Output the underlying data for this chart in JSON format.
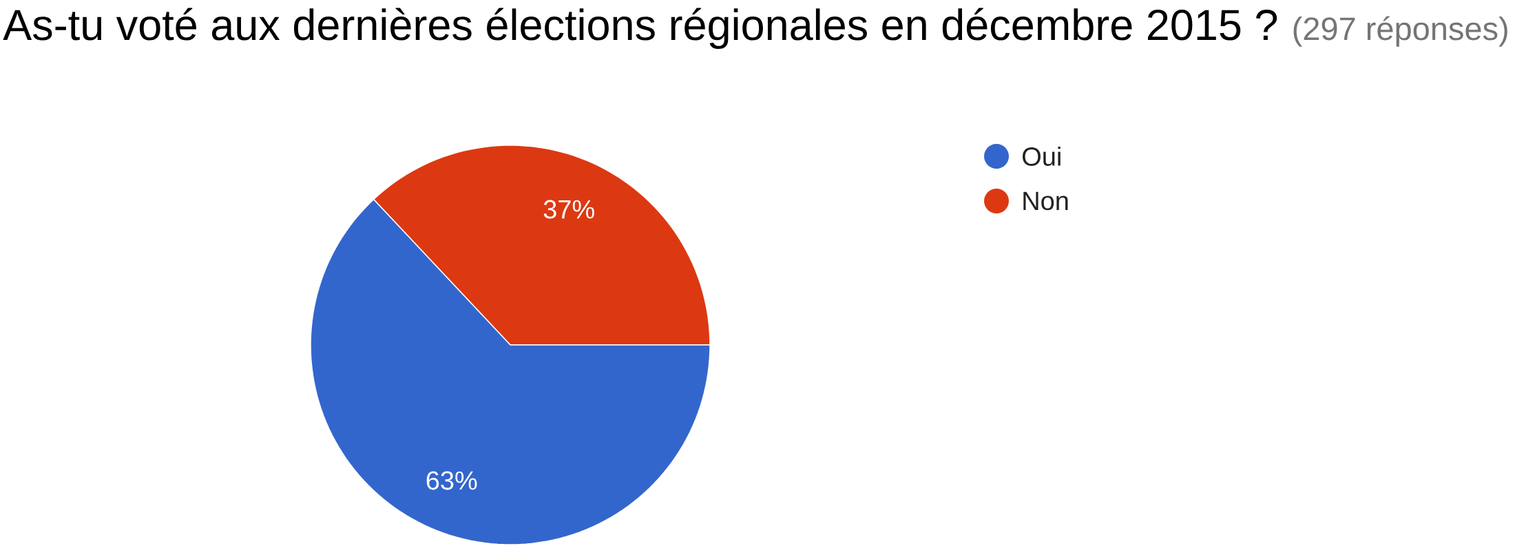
{
  "chart_data": {
    "type": "pie",
    "title": "As-tu voté aux dernières élections régionales en décembre 2015 ?",
    "subtitle": "(297 réponses)",
    "categories": [
      "Oui",
      "Non"
    ],
    "values": [
      63,
      37
    ],
    "colors": [
      "#3366cc",
      "#dc3912"
    ],
    "value_labels": [
      "63%",
      "37%"
    ],
    "legend": "right"
  }
}
